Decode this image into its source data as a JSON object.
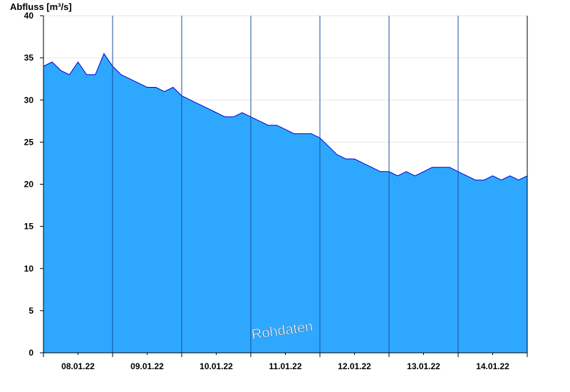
{
  "chart_data": {
    "type": "area",
    "ylabel": "Abfluss [m³/s]",
    "watermark": "Rohdaten",
    "ylim": [
      0,
      40
    ],
    "yticks": [
      0,
      5,
      10,
      15,
      20,
      25,
      30,
      35,
      40
    ],
    "x_start": "07.01.22 00:00",
    "x_end": "14.01.22 24:00",
    "day_labels": [
      "08.01.22",
      "09.01.22",
      "10.01.22",
      "11.01.22",
      "12.01.22",
      "13.01.22",
      "14.01.22"
    ],
    "fill_color": "#2ea8ff",
    "line_color": "#0000cc",
    "grid": true,
    "series": [
      {
        "x_hours": [
          0,
          3,
          6,
          9,
          12,
          15,
          18,
          21,
          24,
          27,
          30,
          33,
          36,
          39,
          42,
          45,
          48,
          51,
          54,
          57,
          60,
          63,
          66,
          69,
          72,
          75,
          78,
          81,
          84,
          87,
          90,
          93,
          96,
          99,
          102,
          105,
          108,
          111,
          114,
          117,
          120,
          123,
          126,
          129,
          132,
          135,
          138,
          141,
          144,
          147,
          150,
          153,
          156,
          159,
          162,
          165,
          168
        ],
        "values": [
          34.0,
          34.5,
          33.5,
          33.0,
          34.5,
          33.0,
          33.0,
          35.5,
          34.0,
          33.0,
          32.5,
          32.0,
          31.5,
          31.5,
          31.0,
          31.5,
          30.5,
          30.0,
          29.5,
          29.0,
          28.5,
          28.0,
          28.0,
          28.5,
          28.0,
          27.5,
          27.0,
          27.0,
          26.5,
          26.0,
          26.0,
          26.0,
          25.5,
          24.5,
          23.5,
          23.0,
          23.0,
          22.5,
          22.0,
          21.5,
          21.5,
          21.0,
          21.5,
          21.0,
          21.5,
          22.0,
          22.0,
          22.0,
          21.5,
          21.0,
          20.5,
          20.5,
          21.0,
          20.5,
          21.0,
          20.5,
          21.0
        ]
      }
    ]
  }
}
